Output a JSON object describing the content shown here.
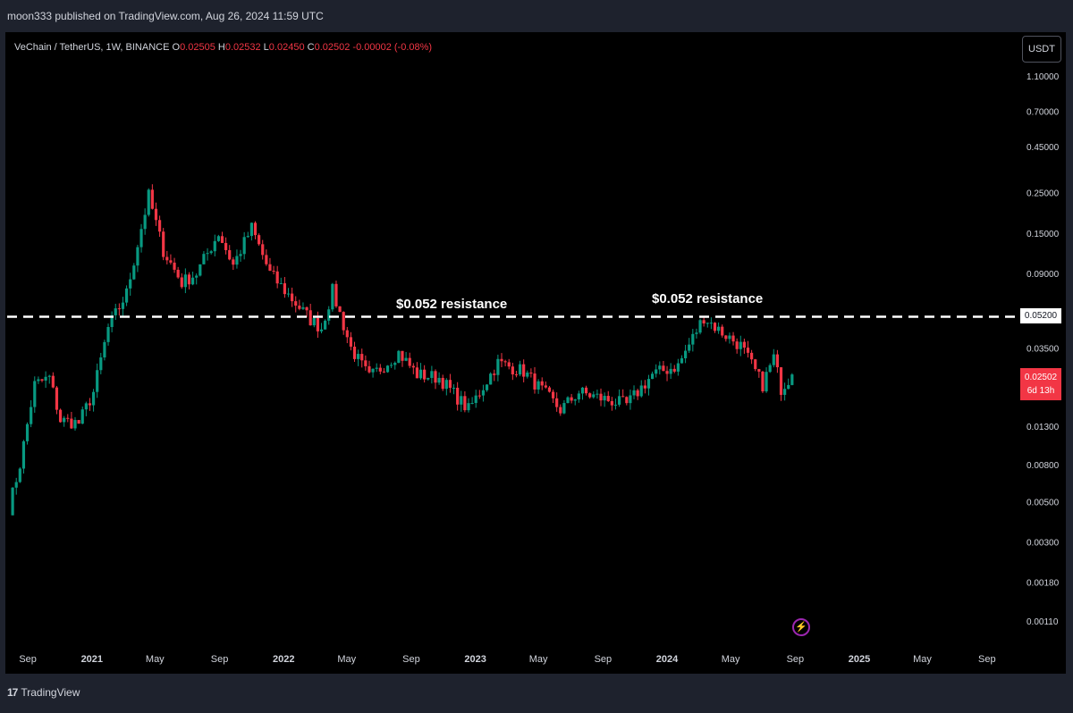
{
  "header": {
    "published_line": "moon333 published on TradingView.com, Aug 26, 2024 11:59 UTC"
  },
  "symbol": {
    "name": "VeChain / TetherUS, 1W, BINANCE",
    "open_label": "O",
    "open": "0.02505",
    "high_label": "H",
    "high": "0.02532",
    "low_label": "L",
    "low": "0.02450",
    "close_label": "C",
    "close": "0.02502",
    "change": "-0.00002 (-0.08%)"
  },
  "currency_button": "USDT",
  "annotations": {
    "resistance_label_1": "$0.052 resistance",
    "resistance_label_2": "$0.052 resistance"
  },
  "price_tags": {
    "resistance": "0.05200",
    "last_price": "0.02502",
    "countdown": "6d 13h"
  },
  "footer": {
    "logo_text": "TradingView",
    "logo_mark": "17"
  },
  "icons": [
    "flash-icon",
    "tradingview-logo-icon"
  ],
  "colors": {
    "background": "#000000",
    "up_candle": "#089981",
    "down_candle": "#f23645",
    "resistance_line": "#ffffff",
    "last_price_tag": "#f23645",
    "flash_icon": "#9c27b0"
  },
  "chart_data": {
    "type": "candlestick",
    "title": "VeChain / TetherUS, 1W, BINANCE",
    "y_scale": "log",
    "ylim": [
      0.00085,
      1.3
    ],
    "y_ticks": [
      "1.10000",
      "0.70000",
      "0.45000",
      "0.25000",
      "0.15000",
      "0.09000",
      "0.05200",
      "0.03500",
      "0.02502",
      "0.01300",
      "0.00800",
      "0.00500",
      "0.00300",
      "0.00180",
      "0.00110"
    ],
    "x_tick_labels": [
      "Sep",
      "2021",
      "May",
      "Sep",
      "2022",
      "May",
      "Sep",
      "2023",
      "May",
      "Sep",
      "2024",
      "May",
      "Sep",
      "2025",
      "May",
      "Sep"
    ],
    "horizontal_lines": [
      {
        "label": "$0.052 resistance",
        "value": 0.052,
        "style": "dashed"
      }
    ],
    "series": [
      {
        "values": [
          {
            "week": "2020-07-27",
            "close": 0.0046
          },
          {
            "week": "2020-08-17",
            "close": 0.008
          },
          {
            "week": "2020-09-14",
            "close": 0.022
          },
          {
            "week": "2020-10-12",
            "close": 0.024
          },
          {
            "week": "2020-11-02",
            "close": 0.014
          },
          {
            "week": "2020-12-07",
            "close": 0.0135
          },
          {
            "week": "2021-01-04",
            "close": 0.02
          },
          {
            "week": "2021-02-01",
            "close": 0.045
          },
          {
            "week": "2021-03-08",
            "close": 0.07
          },
          {
            "week": "2021-04-05",
            "close": 0.16
          },
          {
            "week": "2021-04-19",
            "close": 0.24
          },
          {
            "week": "2021-05-17",
            "close": 0.12
          },
          {
            "week": "2021-06-21",
            "close": 0.08
          },
          {
            "week": "2021-07-19",
            "close": 0.09
          },
          {
            "week": "2021-08-30",
            "close": 0.15
          },
          {
            "week": "2021-09-27",
            "close": 0.1
          },
          {
            "week": "2021-11-01",
            "close": 0.16
          },
          {
            "week": "2021-12-06",
            "close": 0.09
          },
          {
            "week": "2022-01-17",
            "close": 0.065
          },
          {
            "week": "2022-02-21",
            "close": 0.05
          },
          {
            "week": "2022-03-14",
            "close": 0.045
          },
          {
            "week": "2022-04-04",
            "close": 0.072
          },
          {
            "week": "2022-05-09",
            "close": 0.035
          },
          {
            "week": "2022-06-13",
            "close": 0.024
          },
          {
            "week": "2022-08-08",
            "close": 0.033
          },
          {
            "week": "2022-09-12",
            "close": 0.025
          },
          {
            "week": "2022-10-24",
            "close": 0.024
          },
          {
            "week": "2022-12-19",
            "close": 0.016
          },
          {
            "week": "2023-02-13",
            "close": 0.029
          },
          {
            "week": "2023-04-03",
            "close": 0.026
          },
          {
            "week": "2023-06-12",
            "close": 0.016
          },
          {
            "week": "2023-07-17",
            "close": 0.02
          },
          {
            "week": "2023-10-16",
            "close": 0.017
          },
          {
            "week": "2023-12-04",
            "close": 0.025
          },
          {
            "week": "2024-01-22",
            "close": 0.028
          },
          {
            "week": "2024-03-11",
            "close": 0.052
          },
          {
            "week": "2024-04-08",
            "close": 0.044
          },
          {
            "week": "2024-05-20",
            "close": 0.036
          },
          {
            "week": "2024-07-01",
            "close": 0.022
          },
          {
            "week": "2024-07-22",
            "close": 0.031
          },
          {
            "week": "2024-08-05",
            "close": 0.021
          },
          {
            "week": "2024-08-26",
            "close": 0.02502
          }
        ]
      }
    ]
  }
}
